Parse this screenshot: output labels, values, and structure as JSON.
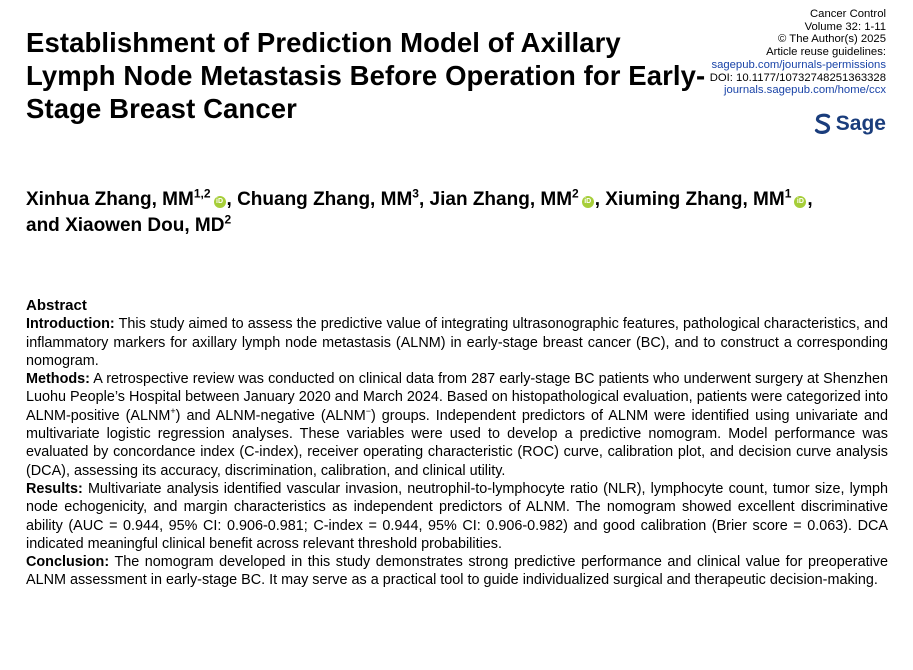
{
  "title": "Establishment of Prediction Model of Axillary Lymph Node Metastasis Before Operation for Early-Stage Breast Cancer",
  "meta": {
    "journal": "Cancer Control",
    "volume": "Volume 32: 1-11",
    "copyright": "© The Author(s) 2025",
    "reuse": "Article reuse guidelines:",
    "permissions_link": "sagepub.com/journals-permissions",
    "doi": "DOI: 10.1177/10732748251363328",
    "journal_link": "journals.sagepub.com/home/ccx",
    "publisher": "Sage"
  },
  "authors": [
    {
      "name": "Xinhua Zhang, MM",
      "aff": "1,2",
      "orcid": true
    },
    {
      "name": "Chuang Zhang, MM",
      "aff": "3",
      "orcid": false
    },
    {
      "name": "Jian Zhang, MM",
      "aff": "2",
      "orcid": true
    },
    {
      "name": "Xiuming Zhang, MM",
      "aff": "1",
      "orcid": true
    },
    {
      "name": "Xiaowen Dou, MD",
      "aff": "2",
      "orcid": false
    }
  ],
  "authors_and": "and",
  "abstract": {
    "heading": "Abstract",
    "introduction_label": "Introduction:",
    "introduction": "This study aimed to assess the predictive value of integrating ultrasonographic features, pathological characteristics, and inflammatory markers for axillary lymph node metastasis (ALNM) in early-stage breast cancer (BC), and to construct a corresponding nomogram.",
    "methods_label": "Methods:",
    "methods_a": "A retrospective review was conducted on clinical data from 287 early-stage BC patients who underwent surgery at Shenzhen Luohu People’s Hospital between January 2020 and March 2024. Based on histopathological evaluation, patients were categorized into ALNM-positive (ALNM",
    "methods_sup1": "+",
    "methods_b": ") and ALNM-negative (ALNM",
    "methods_sup2": "−",
    "methods_c": ") groups. Independent predictors of ALNM were identified using univariate and multivariate logistic regression analyses. These variables were used to develop a predictive nomogram. Model performance was evaluated by concordance index (C-index), receiver operating characteristic (ROC) curve, calibration plot, and decision curve analysis (DCA), assessing its accuracy, discrimination, calibration, and clinical utility.",
    "results_label": "Results:",
    "results": "Multivariate analysis identified vascular invasion, neutrophil-to-lymphocyte ratio (NLR), lymphocyte count, tumor size, lymph node echogenicity, and margin characteristics as independent predictors of ALNM. The nomogram showed excellent discriminative ability (AUC = 0.944, 95% CI: 0.906-0.981; C-index = 0.944, 95% CI: 0.906-0.982) and good calibration (Brier score = 0.063). DCA indicated meaningful clinical benefit across relevant threshold probabilities.",
    "conclusion_label": "Conclusion:",
    "conclusion": "The nomogram developed in this study demonstrates strong predictive performance and clinical value for preoperative ALNM assessment in early-stage BC. It may serve as a practical tool to guide individualized surgical and therapeutic decision-making."
  },
  "colors": {
    "link": "#1a44a8",
    "sage": "#1a3d7c",
    "orcid": "#a6ce39"
  }
}
